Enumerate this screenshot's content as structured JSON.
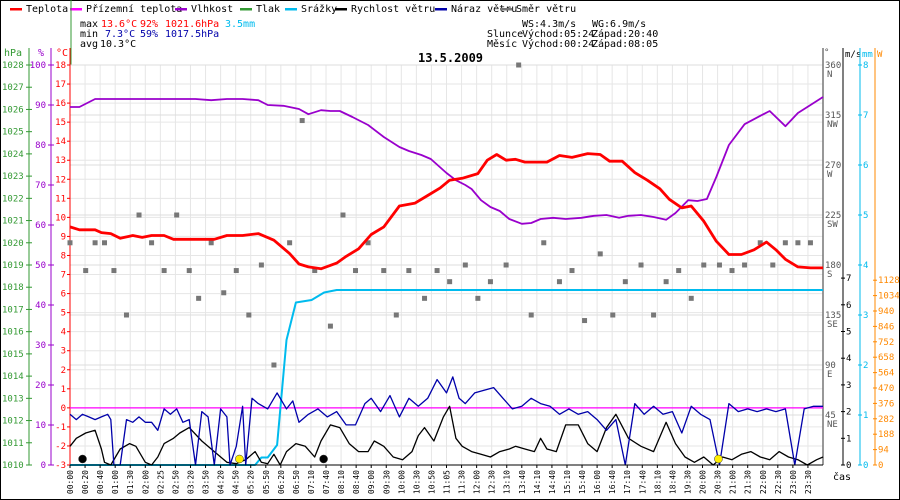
{
  "legend": [
    {
      "label": "Teplota",
      "color": "#ff0000"
    },
    {
      "label": "Přízemní teplota",
      "color": "#ff00ff"
    },
    {
      "label": "Vlhkost",
      "color": "#9900cc"
    },
    {
      "label": "Tlak",
      "color": "#339933"
    },
    {
      "label": "Srážky",
      "color": "#00bbee"
    },
    {
      "label": "Rychlost větru",
      "color": "#000000"
    },
    {
      "label": "Náraz větru",
      "color": "#0000aa"
    },
    {
      "label": "Směr větru",
      "color": "#777777"
    }
  ],
  "stats": {
    "max_label": "max",
    "min_label": "min",
    "avg_label": "avg",
    "max_temp": "13.6°C",
    "max_hum": "92%",
    "max_press": "1021.6hPa",
    "max_rain": "3.5mm",
    "min_temp": "7.3°C",
    "min_hum": "59%",
    "min_press": "1017.5hPa",
    "avg_temp": "10.3°C"
  },
  "wind_info": {
    "ws": "WS:4.3m/s",
    "wg": "WG:6.9m/s"
  },
  "sun": {
    "label": "Slunce",
    "rise": "Východ:05:24",
    "set": "Západ:20:40"
  },
  "moon": {
    "label": "Měsíc",
    "rise": "Východ:00:24",
    "set": "Západ:08:05"
  },
  "colors": {
    "temp": "#ff0000",
    "ground": "#ff00ff",
    "hum": "#9900cc",
    "press": "#339933",
    "rain": "#00bbee",
    "wind": "#000000",
    "gust": "#0000aa",
    "dir": "#777777",
    "solar": "#ff8800",
    "grid": "#e6e6e6"
  },
  "chart_data": {
    "type": "line",
    "title": "13.5.2009",
    "xlabel": "čas",
    "axes": {
      "pressure": {
        "unit": "hPa",
        "range": [
          1010,
          1028
        ],
        "ticks": [
          "1028",
          "1027",
          "1026",
          "1025",
          "1024",
          "1023",
          "1022",
          "1021",
          "1020",
          "1019",
          "1018",
          "1017",
          "1016",
          "1015",
          "1014",
          "1013",
          "1012",
          "1011",
          "1010"
        ]
      },
      "humidity": {
        "unit": "%",
        "range": [
          0,
          100
        ],
        "ticks": [
          "100",
          "90",
          "80",
          "70",
          "60",
          "50",
          "40",
          "30",
          "20",
          "10",
          "0"
        ]
      },
      "temperature": {
        "unit": "°C",
        "range": [
          -3,
          18
        ],
        "ticks": [
          "18",
          "17",
          "16",
          "15",
          "14",
          "13",
          "12",
          "11",
          "10",
          "9",
          "8",
          "7",
          "6",
          "5",
          "4",
          "3",
          "2",
          "1",
          "0",
          "-1",
          "-2",
          "-3"
        ]
      },
      "direction": {
        "unit": "°",
        "range": [
          0,
          360
        ],
        "ticks": [
          {
            "value": "360",
            "name": "N"
          },
          {
            "value": "315",
            "name": "NW"
          },
          {
            "value": "270",
            "name": "W"
          },
          {
            "value": "225",
            "name": "SW"
          },
          {
            "value": "180",
            "name": "S"
          },
          {
            "value": "135",
            "name": "SE"
          },
          {
            "value": "90",
            "name": "E"
          },
          {
            "value": "45",
            "name": "NE"
          }
        ]
      },
      "wind": {
        "unit": "m/s",
        "range": [
          0,
          7
        ],
        "ticks": [
          "7",
          "6",
          "5",
          "4",
          "3",
          "2",
          "1",
          "0"
        ]
      },
      "rain": {
        "unit": "mm",
        "range": [
          0,
          8
        ],
        "ticks": [
          "8",
          "7",
          "6",
          "5",
          "4",
          "3",
          "2",
          "1",
          "0"
        ]
      },
      "solar": {
        "unit": "W",
        "range": [
          0,
          1128
        ],
        "ticks": [
          "1128",
          "1034",
          "940",
          "846",
          "752",
          "658",
          "564",
          "470",
          "376",
          "282",
          "188",
          "94",
          "0"
        ]
      }
    },
    "x_ticks": [
      "00:00",
      "00:20",
      "00:40",
      "01:00",
      "01:30",
      "02:00",
      "02:25",
      "02:50",
      "03:20",
      "03:50",
      "04:20",
      "04:50",
      "05:20",
      "05:50",
      "06:20",
      "06:50",
      "07:10",
      "07:40",
      "08:10",
      "08:40",
      "09:00",
      "09:30",
      "10:00",
      "10:30",
      "10:50",
      "11:05",
      "11:30",
      "12:00",
      "12:30",
      "13:10",
      "13:40",
      "14:10",
      "14:40",
      "15:10",
      "15:40",
      "16:00",
      "16:40",
      "17:10",
      "17:40",
      "18:10",
      "18:40",
      "19:30",
      "20:00",
      "20:30",
      "21:00",
      "21:30",
      "22:00",
      "22:30",
      "23:00",
      "23:30"
    ],
    "x_range_hours": [
      0,
      24
    ],
    "series": [
      {
        "name": "Teplota",
        "unit": "°C",
        "x": [
          0,
          0.3,
          0.8,
          1.0,
          1.3,
          1.6,
          2.0,
          2.3,
          2.6,
          3.0,
          3.3,
          3.6,
          4.0,
          4.6,
          5.0,
          5.5,
          6.0,
          6.5,
          7.0,
          7.3,
          7.6,
          8.0,
          8.5,
          8.8,
          9.2,
          9.6,
          10.0,
          10.5,
          11.0,
          11.4,
          11.8,
          12.1,
          12.5,
          13.0,
          13.3,
          13.6,
          13.9,
          14.2,
          14.5,
          14.8,
          15.2,
          15.6,
          16.0,
          16.5,
          16.9,
          17.2,
          17.6,
          18.0,
          18.4,
          18.8,
          19.1,
          19.5,
          19.8,
          20.2,
          20.6,
          21.0,
          21.4,
          21.8,
          22.2,
          22.5,
          22.8,
          23.2,
          23.6,
          24.0
        ],
        "values": [
          9.5,
          9.35,
          9.35,
          9.2,
          9.15,
          8.9,
          9.05,
          8.95,
          9.05,
          9.05,
          8.85,
          8.85,
          8.85,
          8.85,
          9.05,
          9.05,
          9.15,
          8.8,
          8.1,
          7.55,
          7.4,
          7.3,
          7.6,
          7.95,
          8.35,
          9.1,
          9.5,
          10.6,
          10.75,
          11.15,
          11.55,
          11.95,
          12.05,
          12.3,
          13.0,
          13.3,
          13.0,
          13.05,
          12.9,
          12.9,
          12.9,
          13.25,
          13.15,
          13.35,
          13.3,
          12.95,
          12.95,
          12.35,
          11.95,
          11.5,
          10.95,
          10.5,
          10.6,
          9.8,
          8.75,
          8.05,
          8.05,
          8.3,
          8.7,
          8.3,
          7.8,
          7.4,
          7.35,
          7.35
        ]
      },
      {
        "name": "Vlhkost",
        "unit": "%",
        "x": [
          0,
          0.3,
          0.8,
          1.3,
          2.0,
          3.0,
          4.0,
          4.5,
          5.0,
          5.5,
          6.0,
          6.3,
          6.8,
          7.3,
          7.6,
          8.0,
          8.3,
          8.6,
          9.0,
          9.5,
          10.0,
          10.5,
          10.8,
          11.2,
          11.5,
          12.0,
          12.3,
          12.6,
          12.8,
          13.1,
          13.4,
          13.7,
          14.0,
          14.4,
          14.7,
          15.0,
          15.4,
          15.8,
          16.3,
          16.7,
          17.1,
          17.5,
          17.8,
          18.2,
          18.6,
          19.0,
          19.3,
          19.7,
          20.0,
          20.3,
          20.6,
          21.0,
          21.5,
          22.0,
          22.3,
          22.5,
          22.8,
          23.2,
          23.6,
          24.0
        ],
        "values": [
          89.5,
          89.5,
          91.5,
          91.5,
          91.5,
          91.5,
          91.5,
          91.2,
          91.5,
          91.5,
          91.2,
          90.0,
          89.8,
          89.0,
          87.7,
          88.7,
          88.5,
          88.5,
          87.0,
          85.0,
          82.0,
          79.5,
          78.5,
          77.5,
          76.5,
          73.0,
          71.2,
          70.0,
          69.0,
          66.2,
          64.5,
          63.5,
          61.5,
          60.3,
          60.5,
          61.5,
          61.8,
          61.5,
          61.8,
          62.3,
          62.5,
          61.8,
          62.3,
          62.5,
          62.0,
          61.3,
          63.0,
          66.2,
          66.0,
          66.5,
          72.0,
          80.0,
          85.2,
          87.3,
          88.5,
          87.0,
          84.7,
          88.0,
          90.0,
          92.0
        ]
      },
      {
        "name": "Přízemní teplota",
        "unit": "°C",
        "x": [
          0,
          24
        ],
        "values": [
          0,
          0
        ]
      },
      {
        "name": "Srážky",
        "unit": "mm",
        "x": [
          0,
          5.3,
          5.9,
          6.1,
          6.3,
          6.6,
          6.9,
          7.2,
          7.7,
          8.1,
          8.5,
          24.0
        ],
        "values": [
          0,
          0,
          0,
          0.15,
          0.15,
          0.4,
          2.5,
          3.25,
          3.3,
          3.45,
          3.5,
          3.5
        ]
      },
      {
        "name": "Rychlost větru",
        "unit": "m/s",
        "x": [
          0,
          0.2,
          0.5,
          0.8,
          1.0,
          1.1,
          1.3,
          1.6,
          1.9,
          2.1,
          2.4,
          2.6,
          2.8,
          3.0,
          3.3,
          3.5,
          3.8,
          4.2,
          4.6,
          5.0,
          5.3,
          5.6,
          5.9,
          6.1,
          6.3,
          6.5,
          6.7,
          6.9,
          7.2,
          7.5,
          7.8,
          8.0,
          8.3,
          8.6,
          8.9,
          9.2,
          9.5,
          9.7,
          10.0,
          10.3,
          10.6,
          10.9,
          11.1,
          11.3,
          11.6,
          11.9,
          12.1,
          12.3,
          12.5,
          12.8,
          13.1,
          13.4,
          13.7,
          14.0,
          14.2,
          14.5,
          14.8,
          15.0,
          15.2,
          15.5,
          15.8,
          16.2,
          16.5,
          16.8,
          17.1,
          17.4,
          17.8,
          18.2,
          18.6,
          19.0,
          19.3,
          19.6,
          19.9,
          20.2,
          20.5,
          20.8,
          21.1,
          21.4,
          21.7,
          22.0,
          22.3,
          22.6,
          22.9,
          23.2,
          23.5,
          23.8,
          24.0
        ],
        "values": [
          0.7,
          1.0,
          1.2,
          1.3,
          0.6,
          0.1,
          0.0,
          0.6,
          0.8,
          0.7,
          0.1,
          0.0,
          0.3,
          0.8,
          1.0,
          1.2,
          1.4,
          0.9,
          0.5,
          0.1,
          0.05,
          0.2,
          0.5,
          0.1,
          0.05,
          0.4,
          0.0,
          0.5,
          0.8,
          0.7,
          0.3,
          0.9,
          1.5,
          1.4,
          0.8,
          0.5,
          0.5,
          0.9,
          0.7,
          0.3,
          0.2,
          0.5,
          1.1,
          1.4,
          0.9,
          1.8,
          2.2,
          1.0,
          0.7,
          0.5,
          0.4,
          0.3,
          0.5,
          0.6,
          0.7,
          0.6,
          0.5,
          1.0,
          0.6,
          0.5,
          1.5,
          1.5,
          0.8,
          0.5,
          1.4,
          1.9,
          1.0,
          0.7,
          0.5,
          1.6,
          0.8,
          0.3,
          0.1,
          0.3,
          0.0,
          0.3,
          0.2,
          0.4,
          0.5,
          0.3,
          0.2,
          0.5,
          0.3,
          0.2,
          0.0,
          0.2,
          0.3
        ]
      },
      {
        "name": "Náraz větru",
        "unit": "m/s",
        "x": [
          0,
          0.2,
          0.4,
          0.6,
          0.8,
          1.0,
          1.2,
          1.3,
          1.4,
          1.6,
          1.8,
          2.0,
          2.2,
          2.4,
          2.6,
          2.8,
          3.0,
          3.2,
          3.4,
          3.6,
          3.8,
          4.0,
          4.2,
          4.4,
          4.6,
          4.8,
          5.0,
          5.1,
          5.3,
          5.5,
          5.6,
          5.8,
          6.0,
          6.3,
          6.6,
          6.9,
          7.1,
          7.3,
          7.6,
          7.9,
          8.2,
          8.5,
          8.8,
          9.1,
          9.4,
          9.6,
          9.9,
          10.2,
          10.5,
          10.8,
          11.1,
          11.4,
          11.7,
          12.0,
          12.2,
          12.4,
          12.6,
          12.9,
          13.2,
          13.5,
          13.8,
          14.1,
          14.4,
          14.7,
          15.0,
          15.3,
          15.6,
          15.9,
          16.2,
          16.5,
          16.8,
          17.1,
          17.4,
          17.7,
          18.0,
          18.3,
          18.6,
          18.9,
          19.2,
          19.5,
          19.8,
          20.1,
          20.4,
          20.7,
          21.0,
          21.3,
          21.6,
          21.9,
          22.2,
          22.5,
          22.8,
          23.1,
          23.4,
          23.7,
          24.0
        ],
        "values": [
          1.9,
          1.7,
          1.9,
          1.8,
          1.7,
          1.8,
          1.9,
          1.7,
          0.0,
          0.0,
          1.7,
          1.6,
          1.8,
          1.6,
          1.6,
          1.3,
          2.1,
          1.9,
          2.1,
          1.6,
          1.7,
          0.0,
          2.0,
          1.8,
          0.0,
          2.1,
          1.8,
          0.0,
          0.7,
          2.2,
          0.0,
          2.5,
          2.3,
          2.1,
          2.7,
          2.1,
          2.4,
          1.6,
          1.9,
          2.1,
          1.8,
          2.0,
          1.5,
          1.5,
          2.3,
          2.5,
          2.0,
          2.6,
          1.8,
          2.5,
          2.2,
          2.5,
          3.2,
          2.7,
          3.3,
          2.5,
          2.3,
          2.7,
          2.8,
          2.9,
          2.5,
          2.1,
          2.2,
          2.5,
          2.3,
          2.2,
          1.9,
          2.1,
          1.9,
          2.0,
          1.7,
          1.3,
          1.7,
          0.0,
          2.3,
          1.9,
          2.2,
          1.9,
          2.0,
          1.2,
          2.2,
          1.9,
          1.7,
          0.0,
          2.3,
          2.0,
          2.1,
          2.0,
          2.1,
          2.0,
          2.1,
          0.0,
          2.1,
          2.2,
          2.2
        ]
      }
    ],
    "wind_direction_points": {
      "x": [
        0,
        0.5,
        0.8,
        1.1,
        1.4,
        1.8,
        2.2,
        2.6,
        3.0,
        3.4,
        3.8,
        4.1,
        4.5,
        4.9,
        5.3,
        5.7,
        6.1,
        6.5,
        7.0,
        7.4,
        7.8,
        8.3,
        8.7,
        9.1,
        9.5,
        10.0,
        10.4,
        10.8,
        11.3,
        11.7,
        12.1,
        12.6,
        13.0,
        13.4,
        13.9,
        14.3,
        14.7,
        15.1,
        15.6,
        16.0,
        16.4,
        16.9,
        17.3,
        17.7,
        18.2,
        18.6,
        19.0,
        19.4,
        19.8,
        20.2,
        20.7,
        21.1,
        21.5,
        22.0,
        22.4,
        22.8,
        23.2,
        23.6
      ],
      "values": [
        200,
        175,
        200,
        200,
        175,
        135,
        225,
        200,
        175,
        225,
        175,
        150,
        200,
        155,
        175,
        135,
        180,
        90,
        200,
        310,
        175,
        125,
        225,
        175,
        200,
        175,
        135,
        175,
        150,
        175,
        165,
        180,
        150,
        165,
        180,
        360,
        135,
        200,
        165,
        175,
        130,
        190,
        135,
        165,
        180,
        135,
        165,
        175,
        150,
        180,
        180,
        175,
        180,
        200,
        180,
        200,
        200,
        200
      ]
    },
    "markers": [
      {
        "type": "moonrise",
        "time": "00:24",
        "color": "#000000"
      },
      {
        "type": "sunrise",
        "time": "05:24",
        "color": "#ffee00"
      },
      {
        "type": "moonset",
        "time": "08:05",
        "color": "#000000"
      },
      {
        "type": "sunset",
        "time": "20:40",
        "color": "#ffee00"
      }
    ]
  }
}
